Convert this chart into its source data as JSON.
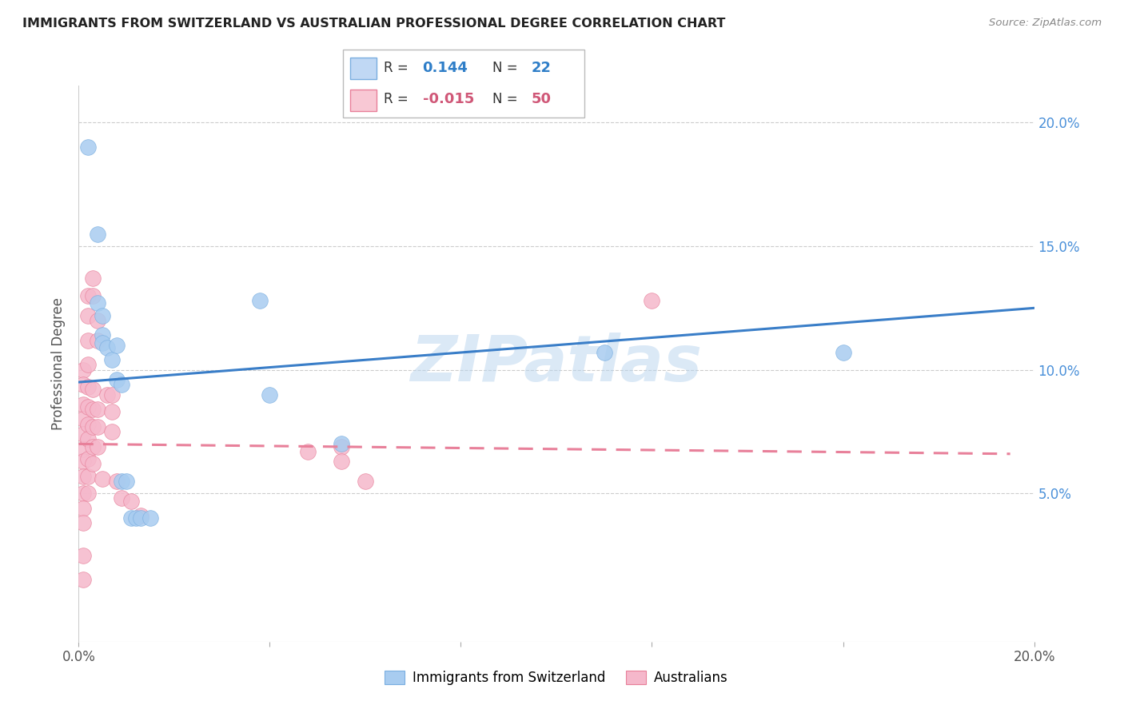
{
  "title": "IMMIGRANTS FROM SWITZERLAND VS AUSTRALIAN PROFESSIONAL DEGREE CORRELATION CHART",
  "source": "Source: ZipAtlas.com",
  "ylabel": "Professional Degree",
  "watermark": "ZIPatlas",
  "legend_label1": "Immigrants from Switzerland",
  "legend_label2": "Australians",
  "xlim": [
    0.0,
    0.2
  ],
  "ylim": [
    -0.01,
    0.215
  ],
  "yticks": [
    0.05,
    0.1,
    0.15,
    0.2
  ],
  "ytick_labels": [
    "5.0%",
    "10.0%",
    "15.0%",
    "20.0%"
  ],
  "xticks": [
    0.0,
    0.04,
    0.08,
    0.12,
    0.16,
    0.2
  ],
  "xtick_labels": [
    "0.0%",
    "",
    "",
    "",
    "",
    "20.0%"
  ],
  "color_blue": "#A8CCF0",
  "color_blue_edge": "#7AAEE0",
  "color_pink": "#F5B8CB",
  "color_pink_edge": "#E8809A",
  "color_blue_line": "#3A7EC8",
  "color_pink_line": "#E8809A",
  "blue_scatter": [
    [
      0.002,
      0.19
    ],
    [
      0.004,
      0.155
    ],
    [
      0.004,
      0.127
    ],
    [
      0.005,
      0.122
    ],
    [
      0.005,
      0.114
    ],
    [
      0.005,
      0.111
    ],
    [
      0.006,
      0.109
    ],
    [
      0.007,
      0.104
    ],
    [
      0.008,
      0.11
    ],
    [
      0.008,
      0.096
    ],
    [
      0.009,
      0.094
    ],
    [
      0.009,
      0.055
    ],
    [
      0.01,
      0.055
    ],
    [
      0.011,
      0.04
    ],
    [
      0.012,
      0.04
    ],
    [
      0.013,
      0.04
    ],
    [
      0.015,
      0.04
    ],
    [
      0.038,
      0.128
    ],
    [
      0.04,
      0.09
    ],
    [
      0.055,
      0.07
    ],
    [
      0.11,
      0.107
    ],
    [
      0.16,
      0.107
    ]
  ],
  "pink_scatter": [
    [
      0.001,
      0.1
    ],
    [
      0.001,
      0.094
    ],
    [
      0.001,
      0.086
    ],
    [
      0.001,
      0.08
    ],
    [
      0.001,
      0.074
    ],
    [
      0.001,
      0.068
    ],
    [
      0.001,
      0.063
    ],
    [
      0.001,
      0.057
    ],
    [
      0.001,
      0.05
    ],
    [
      0.001,
      0.044
    ],
    [
      0.001,
      0.038
    ],
    [
      0.001,
      0.025
    ],
    [
      0.001,
      0.015
    ],
    [
      0.002,
      0.13
    ],
    [
      0.002,
      0.122
    ],
    [
      0.002,
      0.112
    ],
    [
      0.002,
      0.102
    ],
    [
      0.002,
      0.093
    ],
    [
      0.002,
      0.085
    ],
    [
      0.002,
      0.078
    ],
    [
      0.002,
      0.072
    ],
    [
      0.002,
      0.064
    ],
    [
      0.002,
      0.057
    ],
    [
      0.002,
      0.05
    ],
    [
      0.003,
      0.137
    ],
    [
      0.003,
      0.13
    ],
    [
      0.003,
      0.092
    ],
    [
      0.003,
      0.084
    ],
    [
      0.003,
      0.077
    ],
    [
      0.003,
      0.069
    ],
    [
      0.003,
      0.062
    ],
    [
      0.004,
      0.12
    ],
    [
      0.004,
      0.112
    ],
    [
      0.004,
      0.084
    ],
    [
      0.004,
      0.077
    ],
    [
      0.004,
      0.069
    ],
    [
      0.005,
      0.056
    ],
    [
      0.006,
      0.09
    ],
    [
      0.007,
      0.09
    ],
    [
      0.007,
      0.083
    ],
    [
      0.007,
      0.075
    ],
    [
      0.008,
      0.055
    ],
    [
      0.009,
      0.048
    ],
    [
      0.011,
      0.047
    ],
    [
      0.013,
      0.041
    ],
    [
      0.048,
      0.067
    ],
    [
      0.055,
      0.069
    ],
    [
      0.055,
      0.063
    ],
    [
      0.06,
      0.055
    ],
    [
      0.12,
      0.128
    ]
  ],
  "blue_line_x": [
    0.0,
    0.2
  ],
  "blue_line_y": [
    0.095,
    0.125
  ],
  "pink_line_x": [
    0.0,
    0.195
  ],
  "pink_line_y": [
    0.07,
    0.066
  ]
}
